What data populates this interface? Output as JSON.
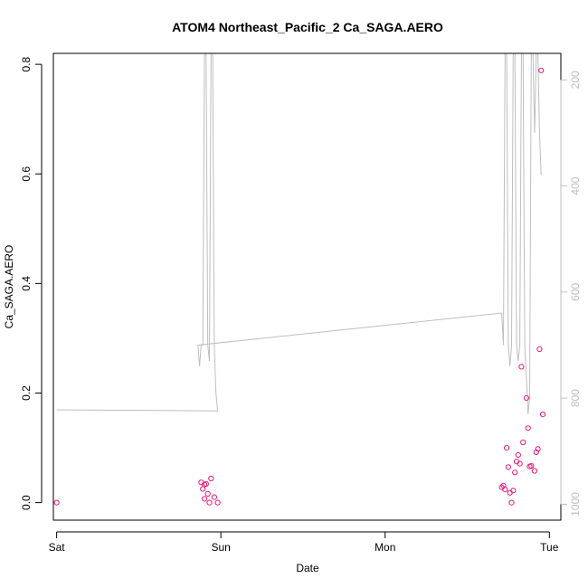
{
  "chart_data": {
    "type": "scatter",
    "title": "ATOM4 Northeast_Pacific_2 Ca_SAGA.AERO",
    "xlabel": "Date",
    "ylabel": "Ca_SAGA.AERO",
    "xlim": [
      -0.02,
      3.07
    ],
    "ylim": [
      -0.032,
      0.82
    ],
    "x_ticks": [
      {
        "value": 0,
        "label": "Sat"
      },
      {
        "value": 1,
        "label": "Sun"
      },
      {
        "value": 2,
        "label": "Mon"
      },
      {
        "value": 3,
        "label": "Tue"
      }
    ],
    "y_ticks": [
      0.0,
      0.2,
      0.4,
      0.6,
      0.8
    ],
    "y_tick_labels": [
      "0.0",
      "0.2",
      "0.4",
      "0.6",
      "0.8"
    ],
    "y2_lim": [
      1030,
      150
    ],
    "y2_ticks": [
      200,
      400,
      600,
      800,
      1000
    ],
    "y2_tick_labels": [
      "200",
      "400",
      "600",
      "800",
      "1000"
    ],
    "point_color": "#e8187a",
    "line_color": "#bebebe",
    "grid": false,
    "series": [
      {
        "values": [
          [
            0.0,
            0.0
          ],
          [
            0.88,
            0.037
          ],
          [
            0.89,
            0.025
          ],
          [
            0.9,
            0.007
          ],
          [
            0.9,
            0.033
          ],
          [
            0.91,
            0.034
          ],
          [
            0.92,
            0.016
          ],
          [
            0.93,
            0.0
          ],
          [
            0.94,
            0.044
          ],
          [
            0.96,
            0.01
          ],
          [
            0.98,
            0.0
          ],
          [
            2.71,
            0.028
          ],
          [
            2.72,
            0.031
          ],
          [
            2.73,
            0.024
          ],
          [
            2.74,
            0.1
          ],
          [
            2.75,
            0.065
          ],
          [
            2.76,
            0.018
          ],
          [
            2.77,
            0.0
          ],
          [
            2.78,
            0.022
          ],
          [
            2.79,
            0.055
          ],
          [
            2.8,
            0.075
          ],
          [
            2.81,
            0.087
          ],
          [
            2.82,
            0.071
          ],
          [
            2.83,
            0.248
          ],
          [
            2.84,
            0.11
          ],
          [
            2.86,
            0.191
          ],
          [
            2.87,
            0.136
          ],
          [
            2.88,
            0.066
          ],
          [
            2.89,
            0.067
          ],
          [
            2.91,
            0.058
          ],
          [
            2.92,
            0.092
          ],
          [
            2.93,
            0.098
          ],
          [
            2.94,
            0.28
          ],
          [
            2.95,
            0.789
          ],
          [
            2.96,
            0.161
          ]
        ]
      },
      {
        "axis": "right",
        "values": [
          [
            0.0,
            822
          ],
          [
            0.98,
            824
          ],
          [
            0.97,
            790
          ],
          [
            0.96,
            700
          ],
          [
            0.95,
            150
          ],
          [
            0.94,
            150
          ],
          [
            0.93,
            730
          ],
          [
            0.92,
            700
          ],
          [
            0.91,
            150
          ],
          [
            0.9,
            150
          ],
          [
            0.89,
            700
          ],
          [
            0.88,
            700
          ],
          [
            0.87,
            740
          ],
          [
            0.86,
            700
          ],
          [
            2.7,
            640
          ],
          [
            2.71,
            640
          ],
          [
            2.72,
            700
          ],
          [
            2.73,
            150
          ],
          [
            2.74,
            150
          ],
          [
            2.75,
            700
          ],
          [
            2.76,
            740
          ],
          [
            2.77,
            700
          ],
          [
            2.78,
            150
          ],
          [
            2.79,
            150
          ],
          [
            2.8,
            700
          ],
          [
            2.81,
            730
          ],
          [
            2.82,
            700
          ],
          [
            2.83,
            150
          ],
          [
            2.84,
            150
          ],
          [
            2.85,
            700
          ],
          [
            2.86,
            760
          ],
          [
            2.87,
            830
          ],
          [
            2.88,
            800
          ],
          [
            2.89,
            150
          ],
          [
            2.9,
            150
          ],
          [
            2.91,
            300
          ],
          [
            2.92,
            150
          ],
          [
            2.93,
            150
          ],
          [
            2.94,
            300
          ],
          [
            2.95,
            380
          ]
        ]
      }
    ]
  }
}
